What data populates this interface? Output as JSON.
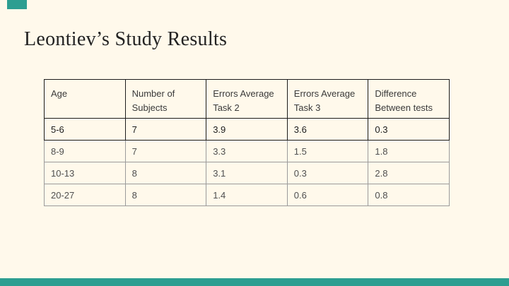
{
  "slide": {
    "title": "Leontiev’s Study Results",
    "colors": {
      "accent": "#2D9E91",
      "background": "#FFF9EB"
    }
  },
  "table": {
    "columns": [
      "Age",
      "Number of Subjects",
      "Errors Average Task 2",
      "Errors Average Task 3",
      "Difference Between tests"
    ],
    "rows": [
      [
        "5-6",
        "7",
        "3.9",
        "3.6",
        "0.3"
      ],
      [
        "8-9",
        "7",
        "3.3",
        "1.5",
        "1.8"
      ],
      [
        "10-13",
        "8",
        "3.1",
        "0.3",
        "2.8"
      ],
      [
        "20-27",
        "8",
        "1.4",
        "0.6",
        "0.8"
      ]
    ]
  }
}
